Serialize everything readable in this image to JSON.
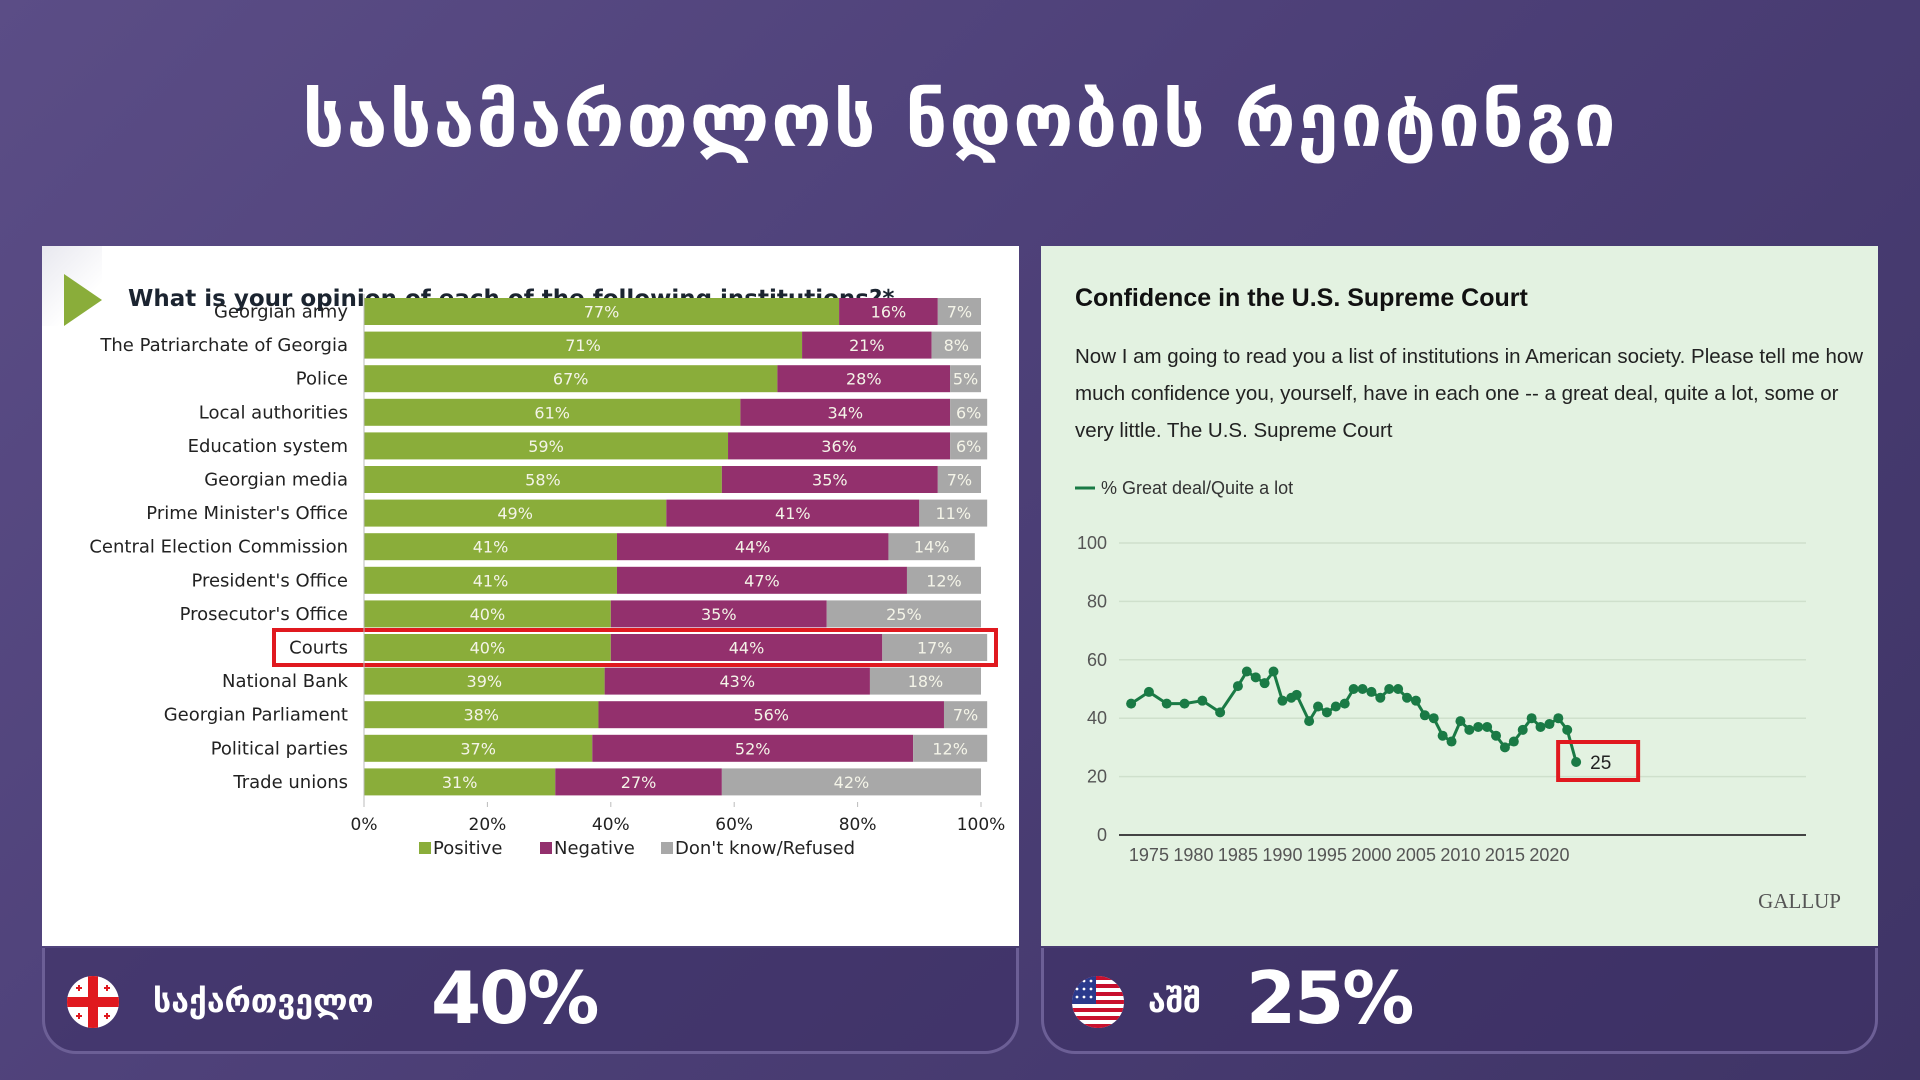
{
  "page": {
    "title": "სასამართლოს ნდობის რეიტინგი"
  },
  "left_panel": {
    "question": "What is your opinion of each of the following institutions?*",
    "highlight_row": "Courts",
    "colors": {
      "positive": "#8aad3a",
      "negative": "#93306d",
      "dont_know": "#a8a8a8",
      "highlight": "#e0191f"
    }
  },
  "right_panel": {
    "title": "Confidence in the U.S. Supreme Court",
    "description": "Now I am going to read you a list of institutions in American society. Please tell me how much confidence you, yourself, have in each one -- a great deal, quite a lot, some or very little. The U.S. Supreme Court",
    "legend_label": "% Great deal/Quite a lot",
    "source_logo": "GALLUP",
    "highlight_label": "25",
    "colors": {
      "line": "#1a7a45",
      "highlight": "#e0191f"
    }
  },
  "bottom": {
    "georgia": {
      "label": "საქართველო",
      "value": "40%",
      "flag_icon": "georgia-flag-icon"
    },
    "usa": {
      "label": "აშშ",
      "value": "25%",
      "flag_icon": "usa-flag-icon"
    }
  },
  "chart_data": [
    {
      "type": "bar",
      "orientation": "horizontal",
      "stacked": true,
      "title": "What is your opinion of each of the following institutions?*",
      "categories": [
        "Georgian army",
        "The Patriarchate of Georgia",
        "Police",
        "Local authorities",
        "Education system",
        "Georgian media",
        "Prime Minister's Office",
        "Central Election Commission",
        "President's Office",
        "Prosecutor's Office",
        "Courts",
        "National Bank",
        "Georgian Parliament",
        "Political parties",
        "Trade unions"
      ],
      "series": [
        {
          "name": "Positive",
          "values": [
            77,
            71,
            67,
            61,
            59,
            58,
            49,
            41,
            41,
            40,
            40,
            39,
            38,
            37,
            31
          ]
        },
        {
          "name": "Negative",
          "values": [
            16,
            21,
            28,
            34,
            36,
            35,
            41,
            44,
            47,
            35,
            44,
            43,
            56,
            52,
            27
          ]
        },
        {
          "name": "Don't know/Refused",
          "values": [
            7,
            8,
            5,
            6,
            6,
            7,
            11,
            14,
            12,
            25,
            17,
            18,
            7,
            12,
            42
          ]
        }
      ],
      "xlim": [
        0,
        100
      ],
      "xticks": [
        "0%",
        "20%",
        "40%",
        "60%",
        "80%",
        "100%"
      ],
      "legend": "bottom",
      "xlabel": "",
      "ylabel": ""
    },
    {
      "type": "line",
      "title": "Confidence in the U.S. Supreme Court",
      "series": [
        {
          "name": "% Great deal/Quite a lot",
          "x": [
            1973,
            1975,
            1977,
            1979,
            1981,
            1983,
            1985,
            1986,
            1987,
            1988,
            1989,
            1990,
            1991,
            1991.6,
            1993,
            1994,
            1995,
            1996,
            1997,
            1998,
            1999,
            2000,
            2001,
            2002,
            2003,
            2004,
            2005,
            2006,
            2007,
            2008,
            2009,
            2010,
            2011,
            2012,
            2013,
            2014,
            2015,
            2016,
            2017,
            2018,
            2019,
            2020,
            2021,
            2022
          ],
          "y": [
            45,
            49,
            45,
            45,
            46,
            42,
            51,
            56,
            54,
            52,
            56,
            46,
            47,
            48,
            39,
            44,
            42,
            44,
            45,
            50,
            50,
            49,
            47,
            50,
            50,
            47,
            46,
            41,
            40,
            34,
            32,
            39,
            36,
            37,
            37,
            34,
            30,
            32,
            36,
            40,
            37,
            38,
            40,
            36
          ]
        }
      ],
      "annotation": {
        "x": 2023,
        "y": 25,
        "label": "25"
      },
      "ylim": [
        0,
        100
      ],
      "yticks": [
        0,
        20,
        40,
        60,
        80,
        100
      ],
      "xticks": [
        1975,
        1980,
        1985,
        1990,
        1995,
        2000,
        2005,
        2010,
        2015,
        2020
      ],
      "grid": true,
      "legend": "top-left",
      "xlabel": "",
      "ylabel": ""
    }
  ]
}
